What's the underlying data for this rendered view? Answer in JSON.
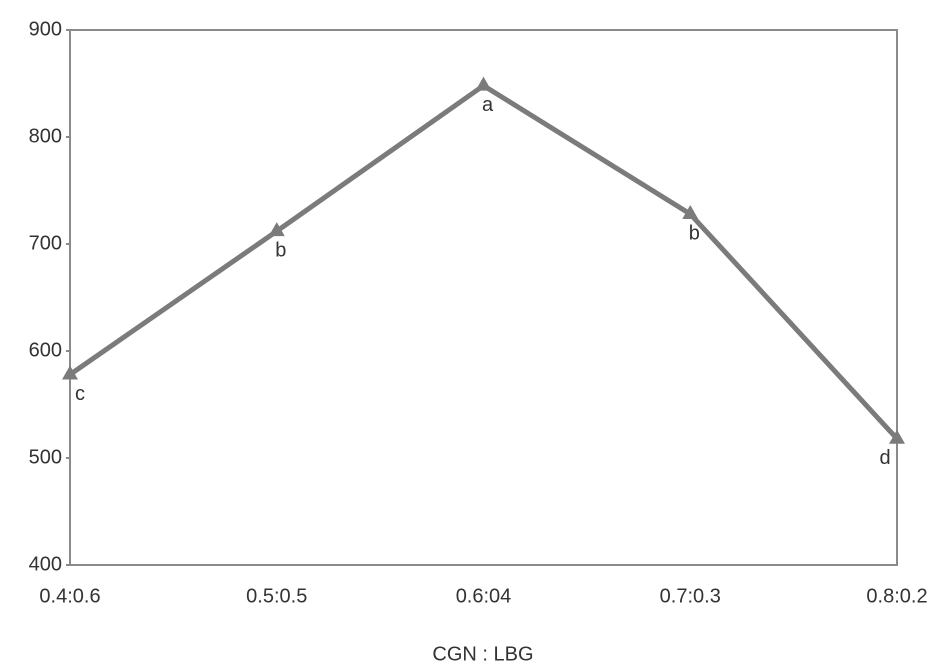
{
  "chart_data": {
    "type": "line",
    "x_label": "CGN :  LBG",
    "categories": [
      "0.4:0.6",
      "0.5:0.5",
      "0.6:04",
      "0.7:0.3",
      "0.8:0.2"
    ],
    "series": [
      {
        "color": "#7b7b7b",
        "values": [
          578,
          712,
          848,
          728,
          518
        ]
      }
    ],
    "point_labels": [
      "c",
      "b",
      "a",
      "b",
      "d"
    ],
    "ylim": [
      400,
      900
    ],
    "yticks": [
      400,
      500,
      600,
      700,
      800,
      900
    ]
  }
}
